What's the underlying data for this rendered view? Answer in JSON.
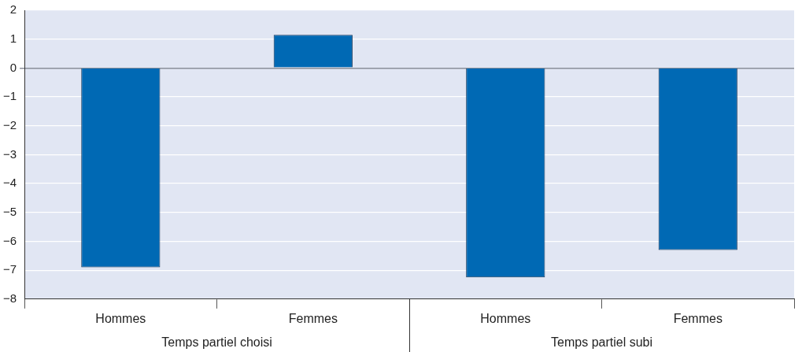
{
  "chart_data": {
    "type": "bar",
    "categories": [
      "Hommes",
      "Femmes",
      "Hommes",
      "Femmes"
    ],
    "series": [
      {
        "color": "#0069b4",
        "values": [
          -6.9,
          1.15,
          -7.25,
          -6.3
        ]
      }
    ],
    "ylim": [
      -8,
      2
    ],
    "yticks": [
      {
        "value": -8,
        "label": "−8"
      },
      {
        "value": -7,
        "label": "−7"
      },
      {
        "value": -6,
        "label": "−6"
      },
      {
        "value": -5,
        "label": "−5"
      },
      {
        "value": -4,
        "label": "−4"
      },
      {
        "value": -3,
        "label": "−3"
      },
      {
        "value": -2,
        "label": "−2"
      },
      {
        "value": -1,
        "label": "−1"
      },
      0,
      1,
      2
    ],
    "grid": "y",
    "legend": false,
    "annotations": [
      "Temps partiel choisi",
      "Temps partiel subi"
    ]
  }
}
